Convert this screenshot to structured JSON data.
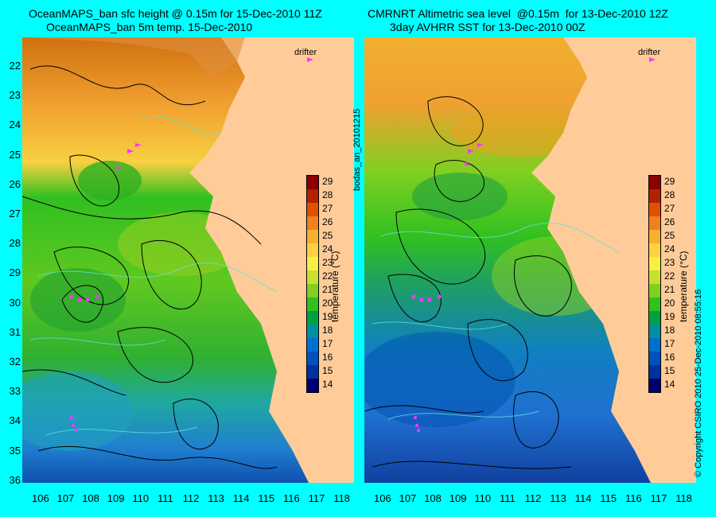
{
  "left": {
    "title_line1": "OceanMAPS_ban sfc height @ 0.15m for 15-Dec-2010 11Z",
    "title_line2": "OceanMAPS_ban 5m temp. 15-Dec-2010",
    "drifter_label": "drifter"
  },
  "right": {
    "title_line1": "CMRNRT Altimetric sea level  @0.15m  for 13-Dec-2010 12Z",
    "title_line2": "3day AVHRR SST for 13-Dec-2010 00Z",
    "drifter_label": "drifter"
  },
  "side_label": "bodas_an_20101215",
  "copyright": "© Copyright CSIRO 2010   25-Dec-2010 08:55:16",
  "colorbar": {
    "label": "temperature (°C)",
    "ticks": [
      "29",
      "28",
      "27",
      "26",
      "25",
      "24",
      "23",
      "22",
      "21",
      "20",
      "19",
      "18",
      "17",
      "16",
      "15",
      "14"
    ],
    "colors": [
      "#8b0000",
      "#b22200",
      "#e05000",
      "#f08020",
      "#f8b030",
      "#ffd040",
      "#f8f040",
      "#c8e030",
      "#80d020",
      "#30c020",
      "#00a040",
      "#0090a0",
      "#0070d0",
      "#0050c0",
      "#0030a0",
      "#000070"
    ]
  },
  "axes": {
    "lon_ticks": [
      "106",
      "107",
      "108",
      "109",
      "110",
      "111",
      "112",
      "113",
      "114",
      "115",
      "116",
      "117",
      "118"
    ],
    "lat_ticks": [
      "22",
      "23",
      "24",
      "25",
      "26",
      "27",
      "28",
      "29",
      "30",
      "31",
      "32",
      "33",
      "34",
      "35",
      "36"
    ]
  },
  "colors": {
    "background": "#00ffff",
    "land": "#ffcc99",
    "drifter": "#ff33ff"
  }
}
